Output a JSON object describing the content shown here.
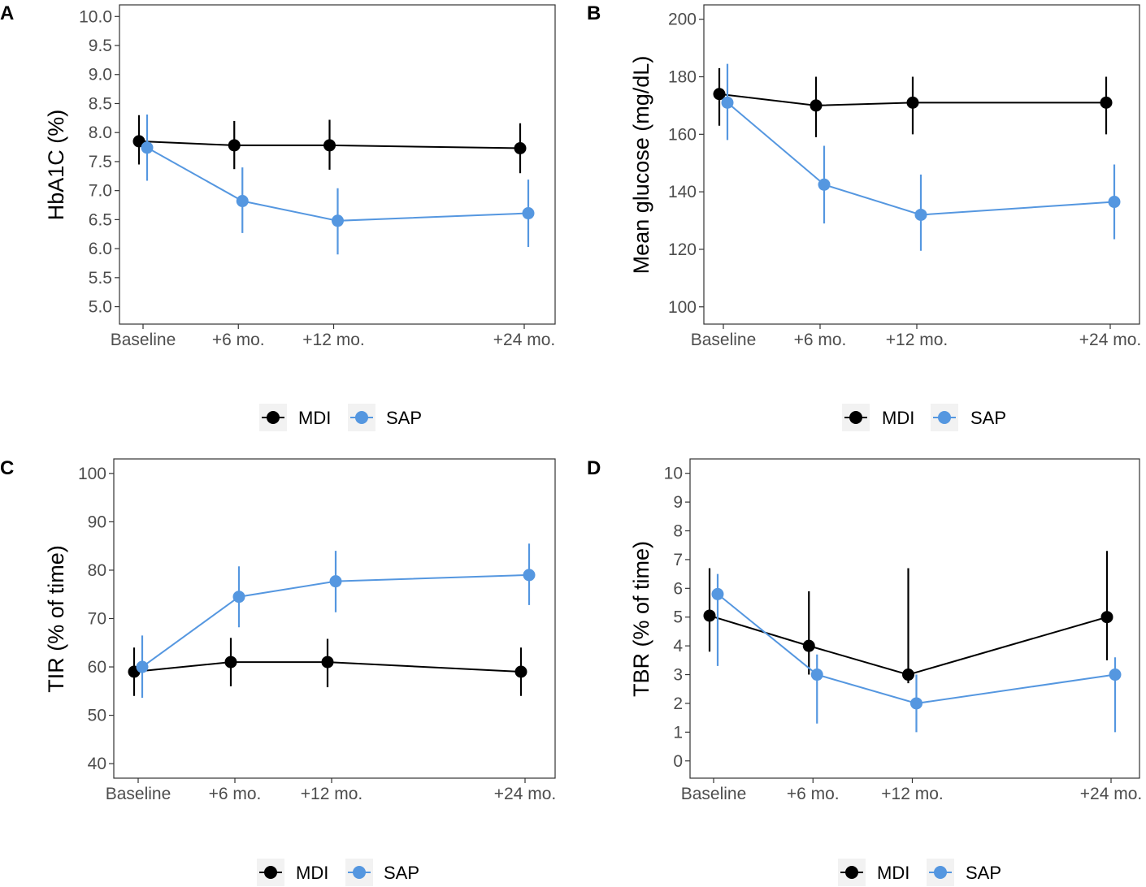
{
  "colors": {
    "MDI": "#000000",
    "SAP": "#5597e0",
    "frame": "#333333",
    "legend_key_bg": "#f2f2f2"
  },
  "legend": [
    {
      "label": "MDI",
      "color": "#000000"
    },
    {
      "label": "SAP",
      "color": "#5597e0"
    }
  ],
  "chart_data": [
    {
      "type": "line",
      "panel": "A",
      "ylabel": "HbA1C (%)",
      "categories": [
        "Baseline",
        "+6 mo.",
        "+12 mo.",
        "+24 mo."
      ],
      "x": [
        0,
        6,
        12,
        24
      ],
      "ylim": [
        4.7,
        10.2
      ],
      "yticks": [
        "5.0",
        "5.5",
        "6.0",
        "6.5",
        "7.0",
        "7.5",
        "8.0",
        "8.5",
        "9.0",
        "9.5",
        "10.0"
      ],
      "series": [
        {
          "name": "MDI",
          "values": [
            7.85,
            7.78,
            7.78,
            7.73
          ],
          "lower": [
            7.45,
            7.37,
            7.36,
            7.3
          ],
          "upper": [
            8.3,
            8.2,
            8.22,
            8.16
          ]
        },
        {
          "name": "SAP",
          "values": [
            7.74,
            6.82,
            6.48,
            6.61
          ],
          "lower": [
            7.17,
            6.27,
            5.9,
            6.03
          ],
          "upper": [
            8.31,
            7.4,
            7.04,
            7.19
          ]
        }
      ]
    },
    {
      "type": "line",
      "panel": "B",
      "ylabel": "Mean glucose (mg/dL)",
      "categories": [
        "Baseline",
        "+6 mo.",
        "+12 mo.",
        "+24 mo."
      ],
      "x": [
        0,
        6,
        12,
        24
      ],
      "ylim": [
        94,
        205
      ],
      "yticks": [
        "100",
        "120",
        "140",
        "160",
        "180",
        "200"
      ],
      "series": [
        {
          "name": "MDI",
          "values": [
            174,
            170,
            171,
            171
          ],
          "lower": [
            163,
            159,
            160,
            160
          ],
          "upper": [
            183,
            180,
            180,
            180
          ]
        },
        {
          "name": "SAP",
          "values": [
            171,
            142.5,
            132,
            136.5
          ],
          "lower": [
            158,
            129,
            119.5,
            123.5
          ],
          "upper": [
            184.5,
            156,
            146,
            149.5
          ]
        }
      ]
    },
    {
      "type": "line",
      "panel": "C",
      "ylabel": "TIR (% of time)",
      "categories": [
        "Baseline",
        "+6 mo.",
        "+12 mo.",
        "+24 mo."
      ],
      "x": [
        0,
        6,
        12,
        24
      ],
      "ylim": [
        37,
        103
      ],
      "yticks": [
        "40",
        "50",
        "60",
        "70",
        "80",
        "90",
        "100"
      ],
      "series": [
        {
          "name": "MDI",
          "values": [
            59,
            61,
            61,
            59
          ],
          "lower": [
            54,
            56,
            55.8,
            54
          ],
          "upper": [
            64,
            66,
            65.8,
            64
          ]
        },
        {
          "name": "SAP",
          "values": [
            60,
            74.5,
            77.7,
            79
          ],
          "lower": [
            53.6,
            68.2,
            71.3,
            72.8
          ],
          "upper": [
            66.5,
            80.8,
            84,
            85.5
          ]
        }
      ]
    },
    {
      "type": "line",
      "panel": "D",
      "ylabel": "TBR (% of time)",
      "categories": [
        "Baseline",
        "+6 mo.",
        "+12 mo.",
        "+24 mo."
      ],
      "x": [
        0,
        6,
        12,
        24
      ],
      "ylim": [
        -0.6,
        10.5
      ],
      "yticks": [
        "0",
        "1",
        "2",
        "3",
        "4",
        "5",
        "6",
        "7",
        "8",
        "9",
        "10"
      ],
      "series": [
        {
          "name": "MDI",
          "values": [
            5.05,
            4,
            3,
            5
          ],
          "lower": [
            3.8,
            3,
            2.7,
            3.5
          ],
          "upper": [
            6.7,
            5.9,
            6.7,
            7.3
          ]
        },
        {
          "name": "SAP",
          "values": [
            5.8,
            3,
            2,
            3
          ],
          "lower": [
            3.3,
            1.3,
            1,
            1
          ],
          "upper": [
            6.5,
            3.7,
            3,
            3.6
          ]
        }
      ]
    }
  ]
}
